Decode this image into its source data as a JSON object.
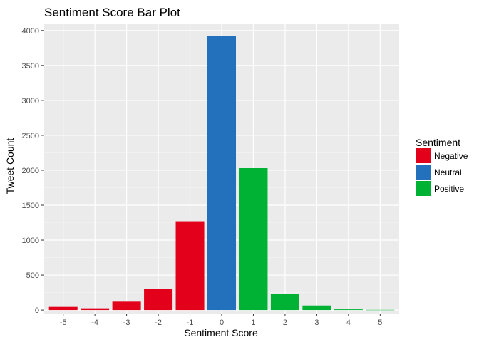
{
  "chart_data": {
    "type": "bar",
    "title": "Sentiment Score Bar Plot",
    "xlabel": "Sentiment Score",
    "ylabel": "Tweet Count",
    "categories": [
      "-5",
      "-4",
      "-3",
      "-2",
      "-1",
      "0",
      "1",
      "2",
      "3",
      "4",
      "5"
    ],
    "values": [
      45,
      25,
      120,
      300,
      1270,
      3920,
      2030,
      230,
      65,
      10,
      3
    ],
    "groups": [
      "Negative",
      "Negative",
      "Negative",
      "Negative",
      "Negative",
      "Neutral",
      "Positive",
      "Positive",
      "Positive",
      "Positive",
      "Positive"
    ],
    "ylim": [
      -50,
      4100
    ],
    "yticks": [
      0,
      500,
      1000,
      1500,
      2000,
      2500,
      3000,
      3500,
      4000
    ],
    "grid": true,
    "legend": {
      "title": "Sentiment",
      "placement": "right",
      "entries": [
        {
          "name": "Negative",
          "color": "#e2001a"
        },
        {
          "name": "Neutral",
          "color": "#2370bc"
        },
        {
          "name": "Positive",
          "color": "#00b233"
        }
      ]
    },
    "colors": {
      "panel": "#ebebeb",
      "grid_major": "#ffffff",
      "grid_minor": "#f5f5f5"
    }
  }
}
